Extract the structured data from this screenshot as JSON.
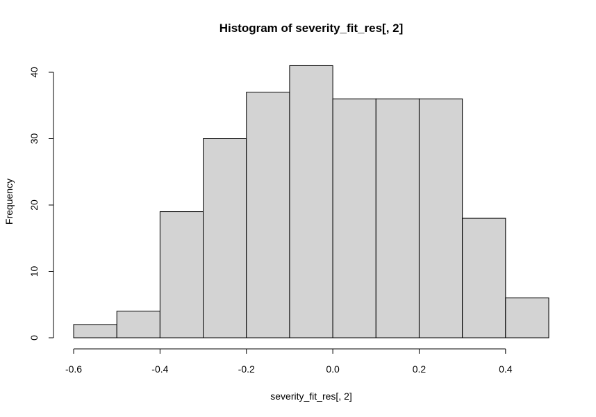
{
  "chart_data": {
    "type": "bar",
    "title": "Histogram of severity_fit_res[, 2]",
    "xlabel": "severity_fit_res[, 2]",
    "ylabel": "Frequency",
    "bins": [
      {
        "start": -0.6,
        "end": -0.5,
        "count": 2
      },
      {
        "start": -0.5,
        "end": -0.4,
        "count": 4
      },
      {
        "start": -0.4,
        "end": -0.3,
        "count": 19
      },
      {
        "start": -0.3,
        "end": -0.2,
        "count": 30
      },
      {
        "start": -0.2,
        "end": -0.1,
        "count": 37
      },
      {
        "start": -0.1,
        "end": 0.0,
        "count": 41
      },
      {
        "start": 0.0,
        "end": 0.1,
        "count": 36
      },
      {
        "start": 0.1,
        "end": 0.2,
        "count": 36
      },
      {
        "start": 0.2,
        "end": 0.3,
        "count": 36
      },
      {
        "start": 0.3,
        "end": 0.4,
        "count": 18
      },
      {
        "start": 0.4,
        "end": 0.5,
        "count": 6
      }
    ],
    "x_ticks": [
      {
        "value": -0.6,
        "label": "-0.6"
      },
      {
        "value": -0.4,
        "label": "-0.4"
      },
      {
        "value": -0.2,
        "label": "-0.2"
      },
      {
        "value": 0.0,
        "label": "0.0"
      },
      {
        "value": 0.2,
        "label": "0.2"
      },
      {
        "value": 0.4,
        "label": "0.4"
      }
    ],
    "y_ticks": [
      {
        "value": 0,
        "label": "0"
      },
      {
        "value": 10,
        "label": "10"
      },
      {
        "value": 20,
        "label": "20"
      },
      {
        "value": 30,
        "label": "30"
      },
      {
        "value": 40,
        "label": "40"
      }
    ],
    "bar_fill": "#d3d3d3",
    "bar_stroke": "#000000",
    "grid": false
  }
}
